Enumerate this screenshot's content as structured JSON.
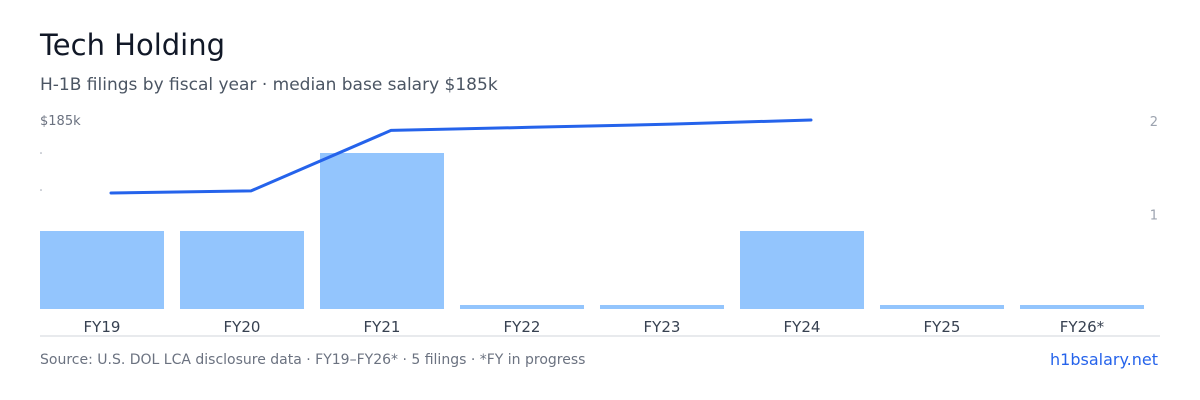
{
  "header": {
    "title": "Tech Holding",
    "subtitle": "H-1B filings by fiscal year · median base salary $185k"
  },
  "footer": {
    "source": "Source: U.S. DOL LCA disclosure data · FY19–FY26* · 5 filings · *FY in progress",
    "site": "h1bsalary.net"
  },
  "colors": {
    "bar": "#93c5fd",
    "line": "#2563eb",
    "axis": "#d1d5db",
    "tick_text": "#374151",
    "right_tick_text": "#9ca3af"
  },
  "chart_data": {
    "type": "bar",
    "categories": [
      "FY19",
      "FY20",
      "FY21",
      "FY22",
      "FY23",
      "FY24",
      "FY25",
      "FY26*"
    ],
    "series": [
      {
        "type": "bar",
        "values": [
          1,
          1,
          2,
          0,
          0,
          1,
          0,
          0
        ]
      },
      {
        "type": "line",
        "values": [
          150000,
          151000,
          180000,
          181500,
          183000,
          185000,
          null,
          null
        ]
      }
    ],
    "left_axis_label": "$185k",
    "right_axis_ticks": [
      "1",
      "2"
    ],
    "right_axis_range": [
      0,
      2
    ],
    "grid": false
  }
}
